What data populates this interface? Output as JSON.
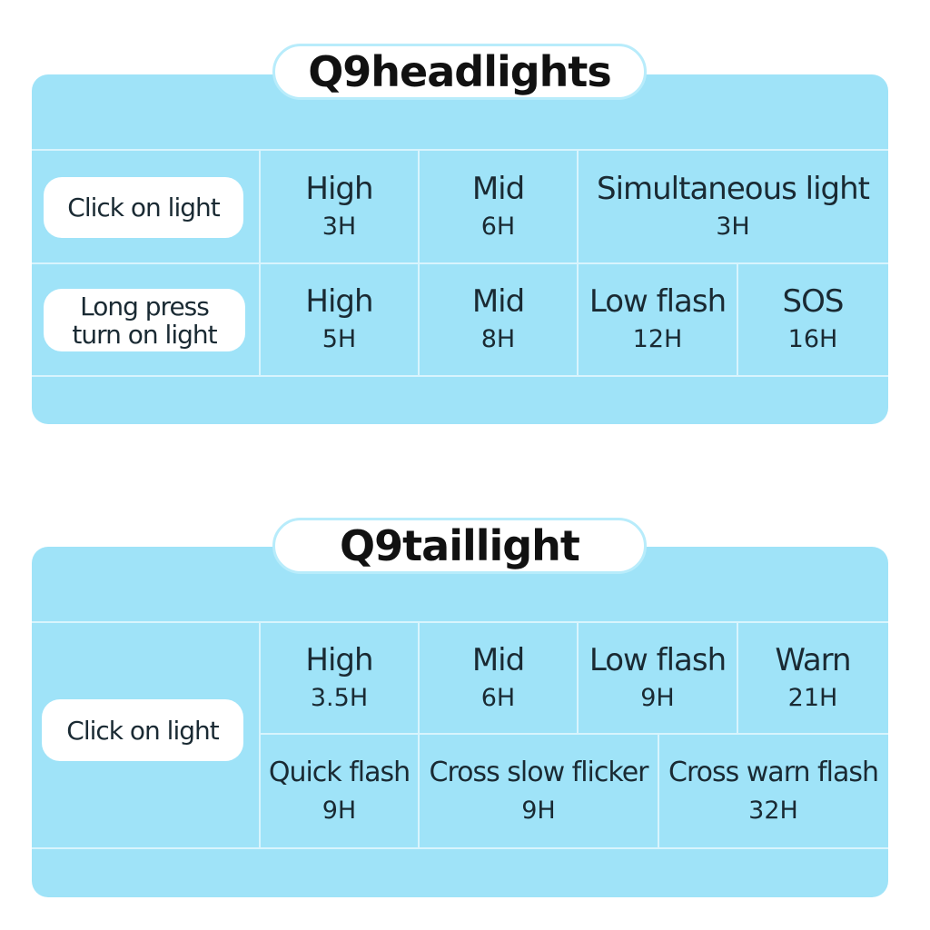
{
  "headlights": {
    "title": "Q9headlights",
    "rows": [
      {
        "label": "Click on light",
        "modes": [
          {
            "name": "High",
            "time": "3H"
          },
          {
            "name": "Mid",
            "time": "6H"
          },
          {
            "name": "Simultaneous light",
            "time": "3H"
          }
        ]
      },
      {
        "label": "Long press turn on light",
        "modes": [
          {
            "name": "High",
            "time": "5H"
          },
          {
            "name": "Mid",
            "time": "8H"
          },
          {
            "name": "Low flash",
            "time": "12H"
          },
          {
            "name": "SOS",
            "time": "16H"
          }
        ]
      }
    ]
  },
  "taillight": {
    "title": "Q9taillight",
    "label": "Click on light",
    "modes": [
      {
        "name": "High",
        "time": "3.5H"
      },
      {
        "name": "Mid",
        "time": "6H"
      },
      {
        "name": "Low flash",
        "time": "9H"
      },
      {
        "name": "Warn",
        "time": "21H"
      },
      {
        "name": "Quick flash",
        "time": "9H"
      },
      {
        "name": "Cross slow flicker",
        "time": "9H"
      },
      {
        "name": "Cross warn flash",
        "time": "32H"
      }
    ]
  },
  "colors": {
    "panel": "#9fe3f8",
    "lines": "#d8f4fd"
  }
}
